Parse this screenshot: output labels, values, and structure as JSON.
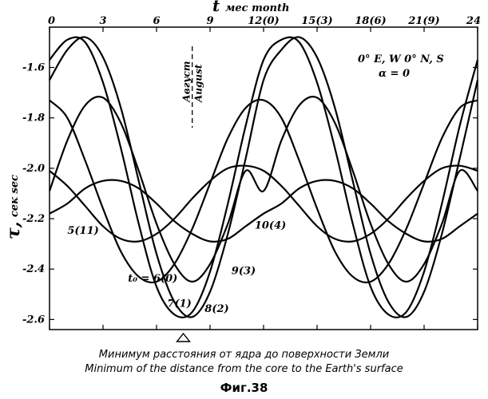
{
  "chart_data": {
    "type": "line",
    "xlabel_main": "t",
    "xlabel_sub": "мес month",
    "ylabel_main": "τ,",
    "ylabel_sub": "сек sec",
    "xlim": [
      0,
      24
    ],
    "ylim": [
      -2.64,
      -1.44
    ],
    "x_ticks": [
      {
        "x": 0,
        "label": "0"
      },
      {
        "x": 3,
        "label": "3"
      },
      {
        "x": 6,
        "label": "6"
      },
      {
        "x": 9,
        "label": "9"
      },
      {
        "x": 12,
        "label": "12(0)"
      },
      {
        "x": 15,
        "label": "15(3)"
      },
      {
        "x": 18,
        "label": "18(6)"
      },
      {
        "x": 21,
        "label": "21(9)"
      },
      {
        "x": 24,
        "label": "24"
      }
    ],
    "y_ticks": [
      {
        "y": -1.6,
        "label": "-1.6"
      },
      {
        "y": -1.8,
        "label": "-1.8"
      },
      {
        "y": -2.0,
        "label": "-2.0"
      },
      {
        "y": -2.2,
        "label": "-2.2"
      },
      {
        "y": -2.4,
        "label": "-2.4"
      },
      {
        "y": -2.6,
        "label": "-2.6"
      }
    ],
    "params_line1": "0° E, W   0° N, S",
    "params_line2": "α = 0",
    "month_marker": {
      "x": 8,
      "label_ru": "Август",
      "label_en": "August"
    },
    "minimum_marker_x": 7.5,
    "series": [
      {
        "name": "t₀ = 6(0)",
        "label_x": 4.4,
        "label_y": -2.45,
        "points": [
          [
            0,
            -1.73
          ],
          [
            1,
            -1.8
          ],
          [
            2,
            -1.97
          ],
          [
            3,
            -2.16
          ],
          [
            4,
            -2.33
          ],
          [
            5,
            -2.43
          ],
          [
            6,
            -2.45
          ],
          [
            7,
            -2.38
          ],
          [
            8,
            -2.24
          ],
          [
            9,
            -2.06
          ],
          [
            10,
            -1.88
          ],
          [
            11,
            -1.76
          ],
          [
            12,
            -1.73
          ],
          [
            13,
            -1.8
          ],
          [
            14,
            -1.97
          ],
          [
            15,
            -2.16
          ],
          [
            16,
            -2.33
          ],
          [
            17,
            -2.43
          ],
          [
            18,
            -2.45
          ],
          [
            19,
            -2.38
          ],
          [
            20,
            -2.24
          ],
          [
            21,
            -2.06
          ],
          [
            22,
            -1.88
          ],
          [
            23,
            -1.76
          ],
          [
            24,
            -1.73
          ]
        ]
      },
      {
        "name": "7(1)",
        "label_x": 6.6,
        "label_y": -2.55,
        "points": [
          [
            0,
            -1.57
          ],
          [
            1,
            -1.49
          ],
          [
            2,
            -1.5
          ],
          [
            3,
            -1.66
          ],
          [
            4,
            -1.92
          ],
          [
            5,
            -2.22
          ],
          [
            6,
            -2.47
          ],
          [
            7,
            -2.58
          ],
          [
            8,
            -2.57
          ],
          [
            9,
            -2.41
          ],
          [
            10,
            -2.14
          ],
          [
            11,
            -1.83
          ],
          [
            12,
            -1.57
          ],
          [
            13,
            -1.49
          ],
          [
            14,
            -1.5
          ],
          [
            15,
            -1.66
          ],
          [
            16,
            -1.92
          ],
          [
            17,
            -2.22
          ],
          [
            18,
            -2.47
          ],
          [
            19,
            -2.58
          ],
          [
            20,
            -2.57
          ],
          [
            21,
            -2.41
          ],
          [
            22,
            -2.14
          ],
          [
            23,
            -1.83
          ],
          [
            24,
            -1.57
          ]
        ]
      },
      {
        "name": "8(2)",
        "label_x": 8.7,
        "label_y": -2.57,
        "points": [
          [
            0,
            -1.65
          ],
          [
            1,
            -1.53
          ],
          [
            2,
            -1.48
          ],
          [
            3,
            -1.56
          ],
          [
            4,
            -1.76
          ],
          [
            5,
            -2.05
          ],
          [
            6,
            -2.34
          ],
          [
            7,
            -2.53
          ],
          [
            8,
            -2.59
          ],
          [
            9,
            -2.49
          ],
          [
            10,
            -2.26
          ],
          [
            11,
            -1.96
          ],
          [
            12,
            -1.65
          ],
          [
            13,
            -1.53
          ],
          [
            14,
            -1.48
          ],
          [
            15,
            -1.56
          ],
          [
            16,
            -1.76
          ],
          [
            17,
            -2.05
          ],
          [
            18,
            -2.34
          ],
          [
            19,
            -2.53
          ],
          [
            20,
            -2.59
          ],
          [
            21,
            -2.49
          ],
          [
            22,
            -2.26
          ],
          [
            23,
            -1.96
          ],
          [
            24,
            -1.65
          ]
        ]
      },
      {
        "name": "9(3)",
        "label_x": 10.2,
        "label_y": -2.42,
        "points": [
          [
            0,
            -2.09
          ],
          [
            1,
            -1.89
          ],
          [
            2,
            -1.75
          ],
          [
            3,
            -1.72
          ],
          [
            4,
            -1.82
          ],
          [
            5,
            -2.01
          ],
          [
            6,
            -2.22
          ],
          [
            7,
            -2.38
          ],
          [
            8,
            -2.45
          ],
          [
            9,
            -2.38
          ],
          [
            10,
            -2.22
          ],
          [
            11,
            -2.01
          ],
          [
            12,
            -2.09
          ],
          [
            13,
            -1.89
          ],
          [
            14,
            -1.75
          ],
          [
            15,
            -1.72
          ],
          [
            16,
            -1.82
          ],
          [
            17,
            -2.01
          ],
          [
            18,
            -2.22
          ],
          [
            19,
            -2.38
          ],
          [
            20,
            -2.45
          ],
          [
            21,
            -2.38
          ],
          [
            22,
            -2.22
          ],
          [
            23,
            -2.01
          ],
          [
            24,
            -2.09
          ]
        ]
      },
      {
        "name": "10(4)",
        "label_x": 11.5,
        "label_y": -2.24,
        "points": [
          [
            0,
            -2.18
          ],
          [
            1,
            -2.14
          ],
          [
            2,
            -2.08
          ],
          [
            3,
            -2.05
          ],
          [
            4,
            -2.05
          ],
          [
            5,
            -2.08
          ],
          [
            6,
            -2.14
          ],
          [
            7,
            -2.21
          ],
          [
            8,
            -2.26
          ],
          [
            9,
            -2.29
          ],
          [
            10,
            -2.28
          ],
          [
            11,
            -2.23
          ],
          [
            12,
            -2.18
          ],
          [
            13,
            -2.14
          ],
          [
            14,
            -2.08
          ],
          [
            15,
            -2.05
          ],
          [
            16,
            -2.05
          ],
          [
            17,
            -2.08
          ],
          [
            18,
            -2.14
          ],
          [
            19,
            -2.21
          ],
          [
            20,
            -2.26
          ],
          [
            21,
            -2.29
          ],
          [
            22,
            -2.28
          ],
          [
            23,
            -2.23
          ],
          [
            24,
            -2.18
          ]
        ]
      },
      {
        "name": "5(11)",
        "label_x": 1.0,
        "label_y": -2.26,
        "points": [
          [
            0,
            -2.01
          ],
          [
            1,
            -2.07
          ],
          [
            2,
            -2.15
          ],
          [
            3,
            -2.23
          ],
          [
            4,
            -2.28
          ],
          [
            5,
            -2.29
          ],
          [
            6,
            -2.26
          ],
          [
            7,
            -2.2
          ],
          [
            8,
            -2.12
          ],
          [
            9,
            -2.05
          ],
          [
            10,
            -2.0
          ],
          [
            11,
            -1.99
          ],
          [
            12,
            -2.01
          ],
          [
            13,
            -2.07
          ],
          [
            14,
            -2.15
          ],
          [
            15,
            -2.23
          ],
          [
            16,
            -2.28
          ],
          [
            17,
            -2.29
          ],
          [
            18,
            -2.26
          ],
          [
            19,
            -2.2
          ],
          [
            20,
            -2.12
          ],
          [
            21,
            -2.05
          ],
          [
            22,
            -2.0
          ],
          [
            23,
            -1.99
          ],
          [
            24,
            -2.01
          ]
        ]
      }
    ]
  },
  "caption_ru": "Минимум расстояния от ядра до поверхности Земли",
  "caption_en": "Minimum of the distance from the core to the Earth's surface",
  "figure_label": "Фиг.38"
}
